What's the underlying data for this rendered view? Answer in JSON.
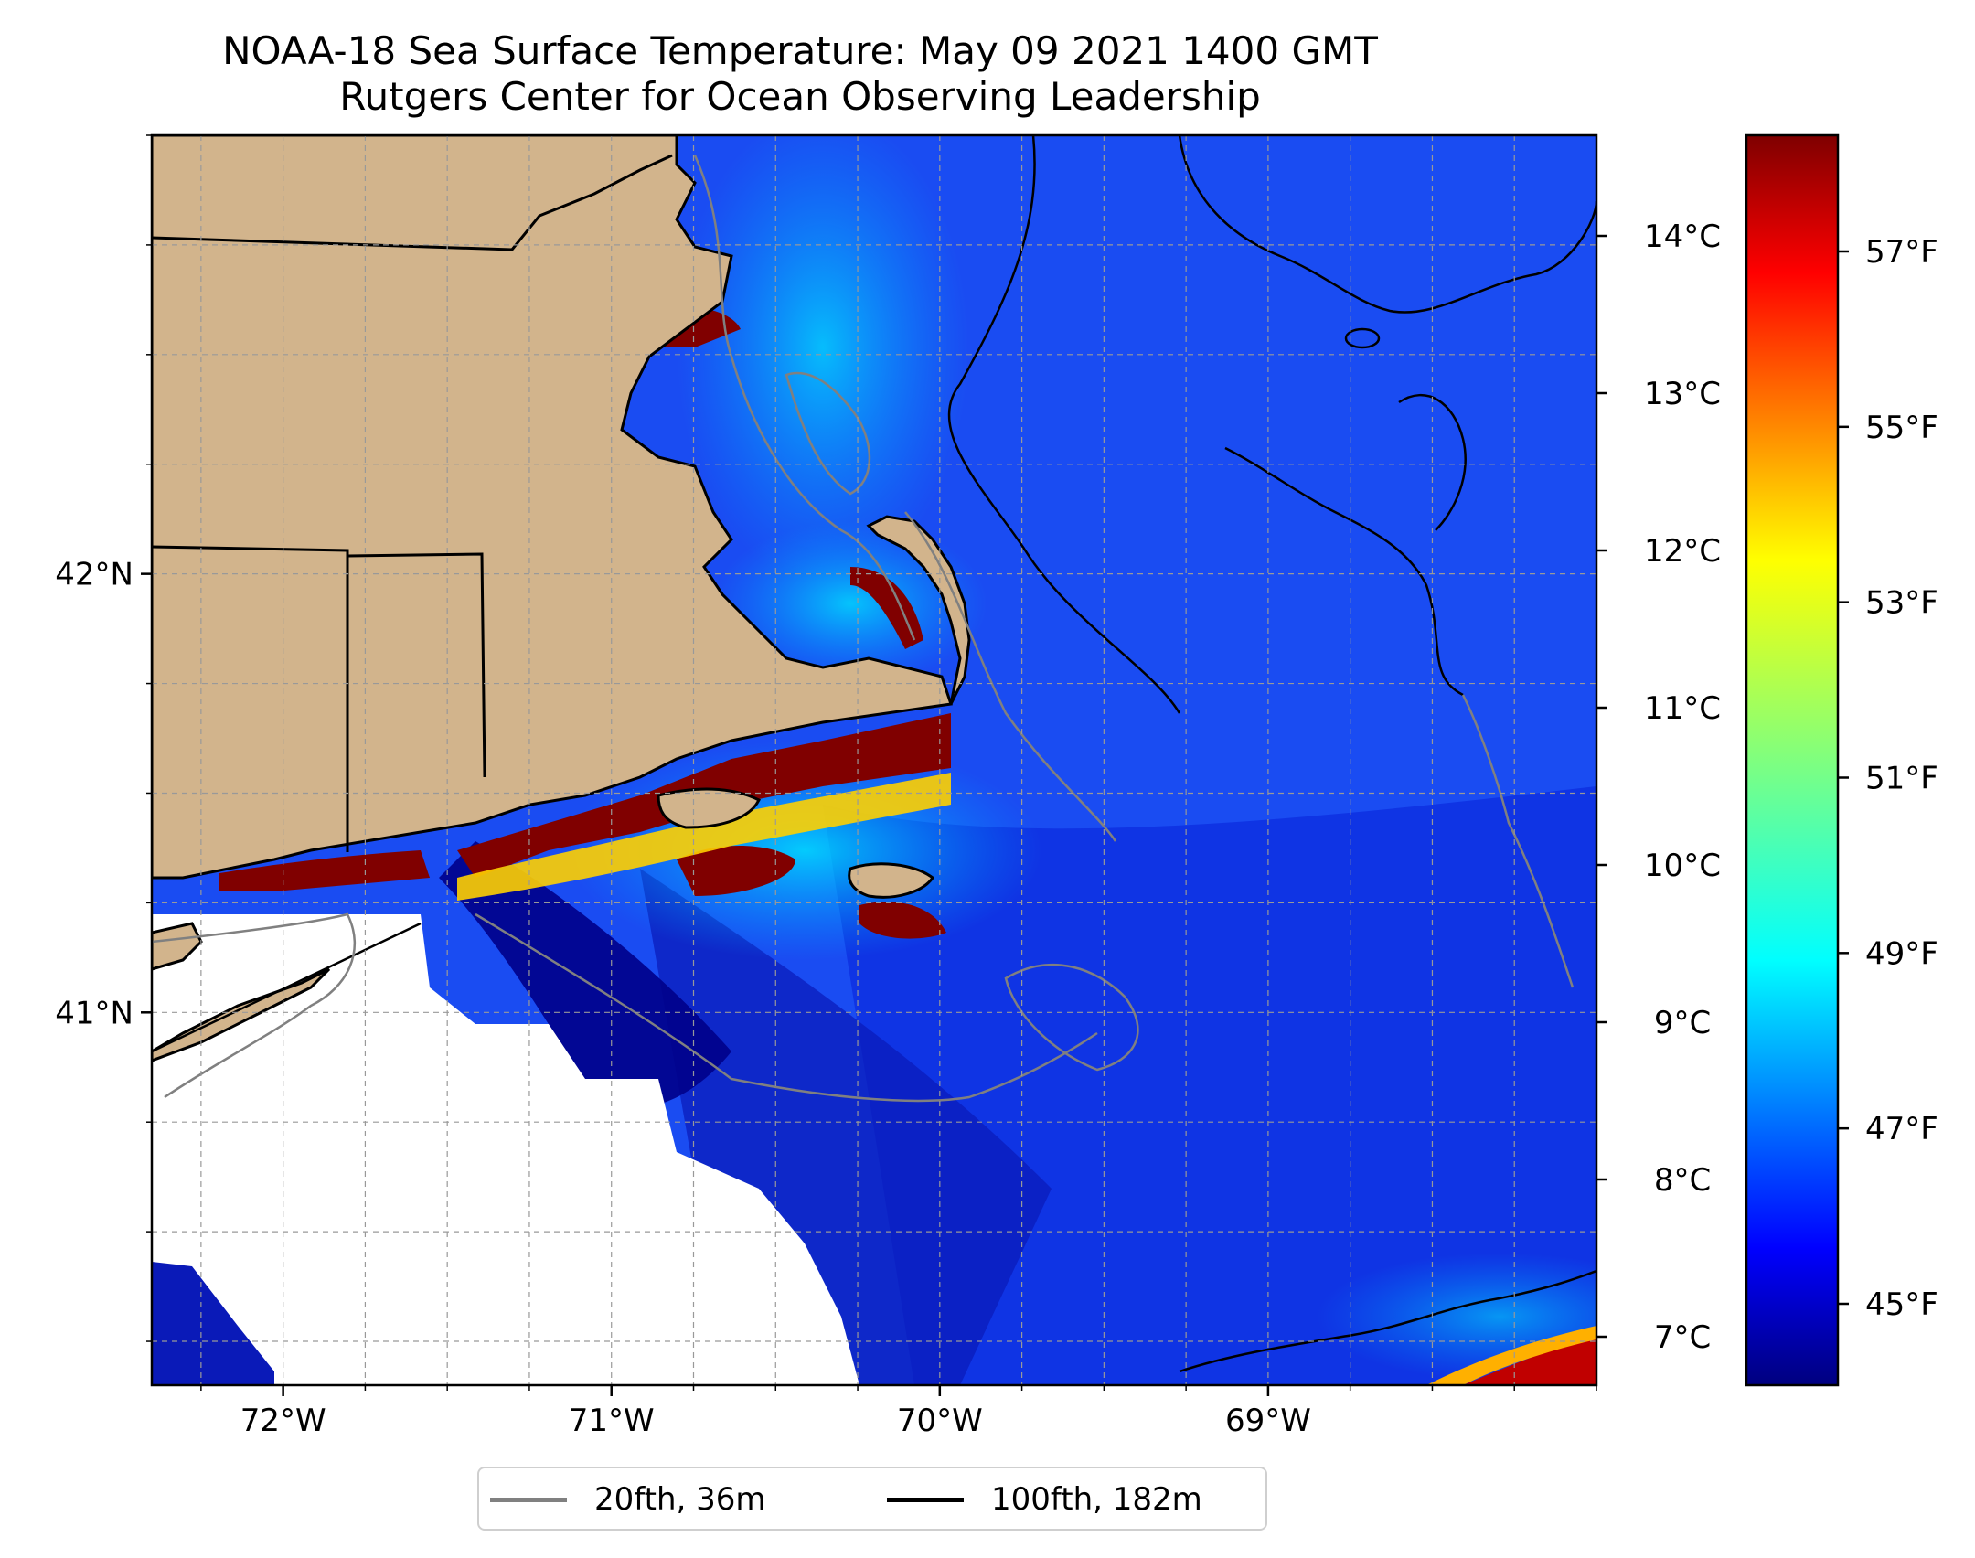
{
  "title": {
    "line1": "NOAA-18 Sea Surface Temperature: May 09 2021 1400 GMT",
    "line2": "Rutgers Center for Ocean Observing Leadership"
  },
  "map": {
    "projection": "lat-lon",
    "lon_range": [
      -72.4,
      -68.0
    ],
    "lat_range": [
      40.15,
      43.0
    ],
    "lon_ticks": [
      {
        "value": -72,
        "label": "72°W"
      },
      {
        "value": -71,
        "label": "71°W"
      },
      {
        "value": -70,
        "label": "70°W"
      },
      {
        "value": -69,
        "label": "69°W"
      }
    ],
    "lat_ticks": [
      {
        "value": 42,
        "label": "42°N"
      },
      {
        "value": 41,
        "label": "41°N"
      }
    ],
    "gridlines": true,
    "land_color": "#d2b48c",
    "no_data_color": "#ffffff"
  },
  "colorbar": {
    "colormap": "jet",
    "celsius_ticks": [
      "14°C",
      "13°C",
      "12°C",
      "11°C",
      "10°C",
      "9°C",
      "8°C",
      "7°C"
    ],
    "fahrenheit_ticks": [
      "57°F",
      "55°F",
      "53°F",
      "51°F",
      "49°F",
      "47°F",
      "45°F"
    ]
  },
  "legend": {
    "items": [
      {
        "label": "20fth, 36m",
        "color": "#808080"
      },
      {
        "label": "100fth, 182m",
        "color": "#000000"
      }
    ]
  }
}
